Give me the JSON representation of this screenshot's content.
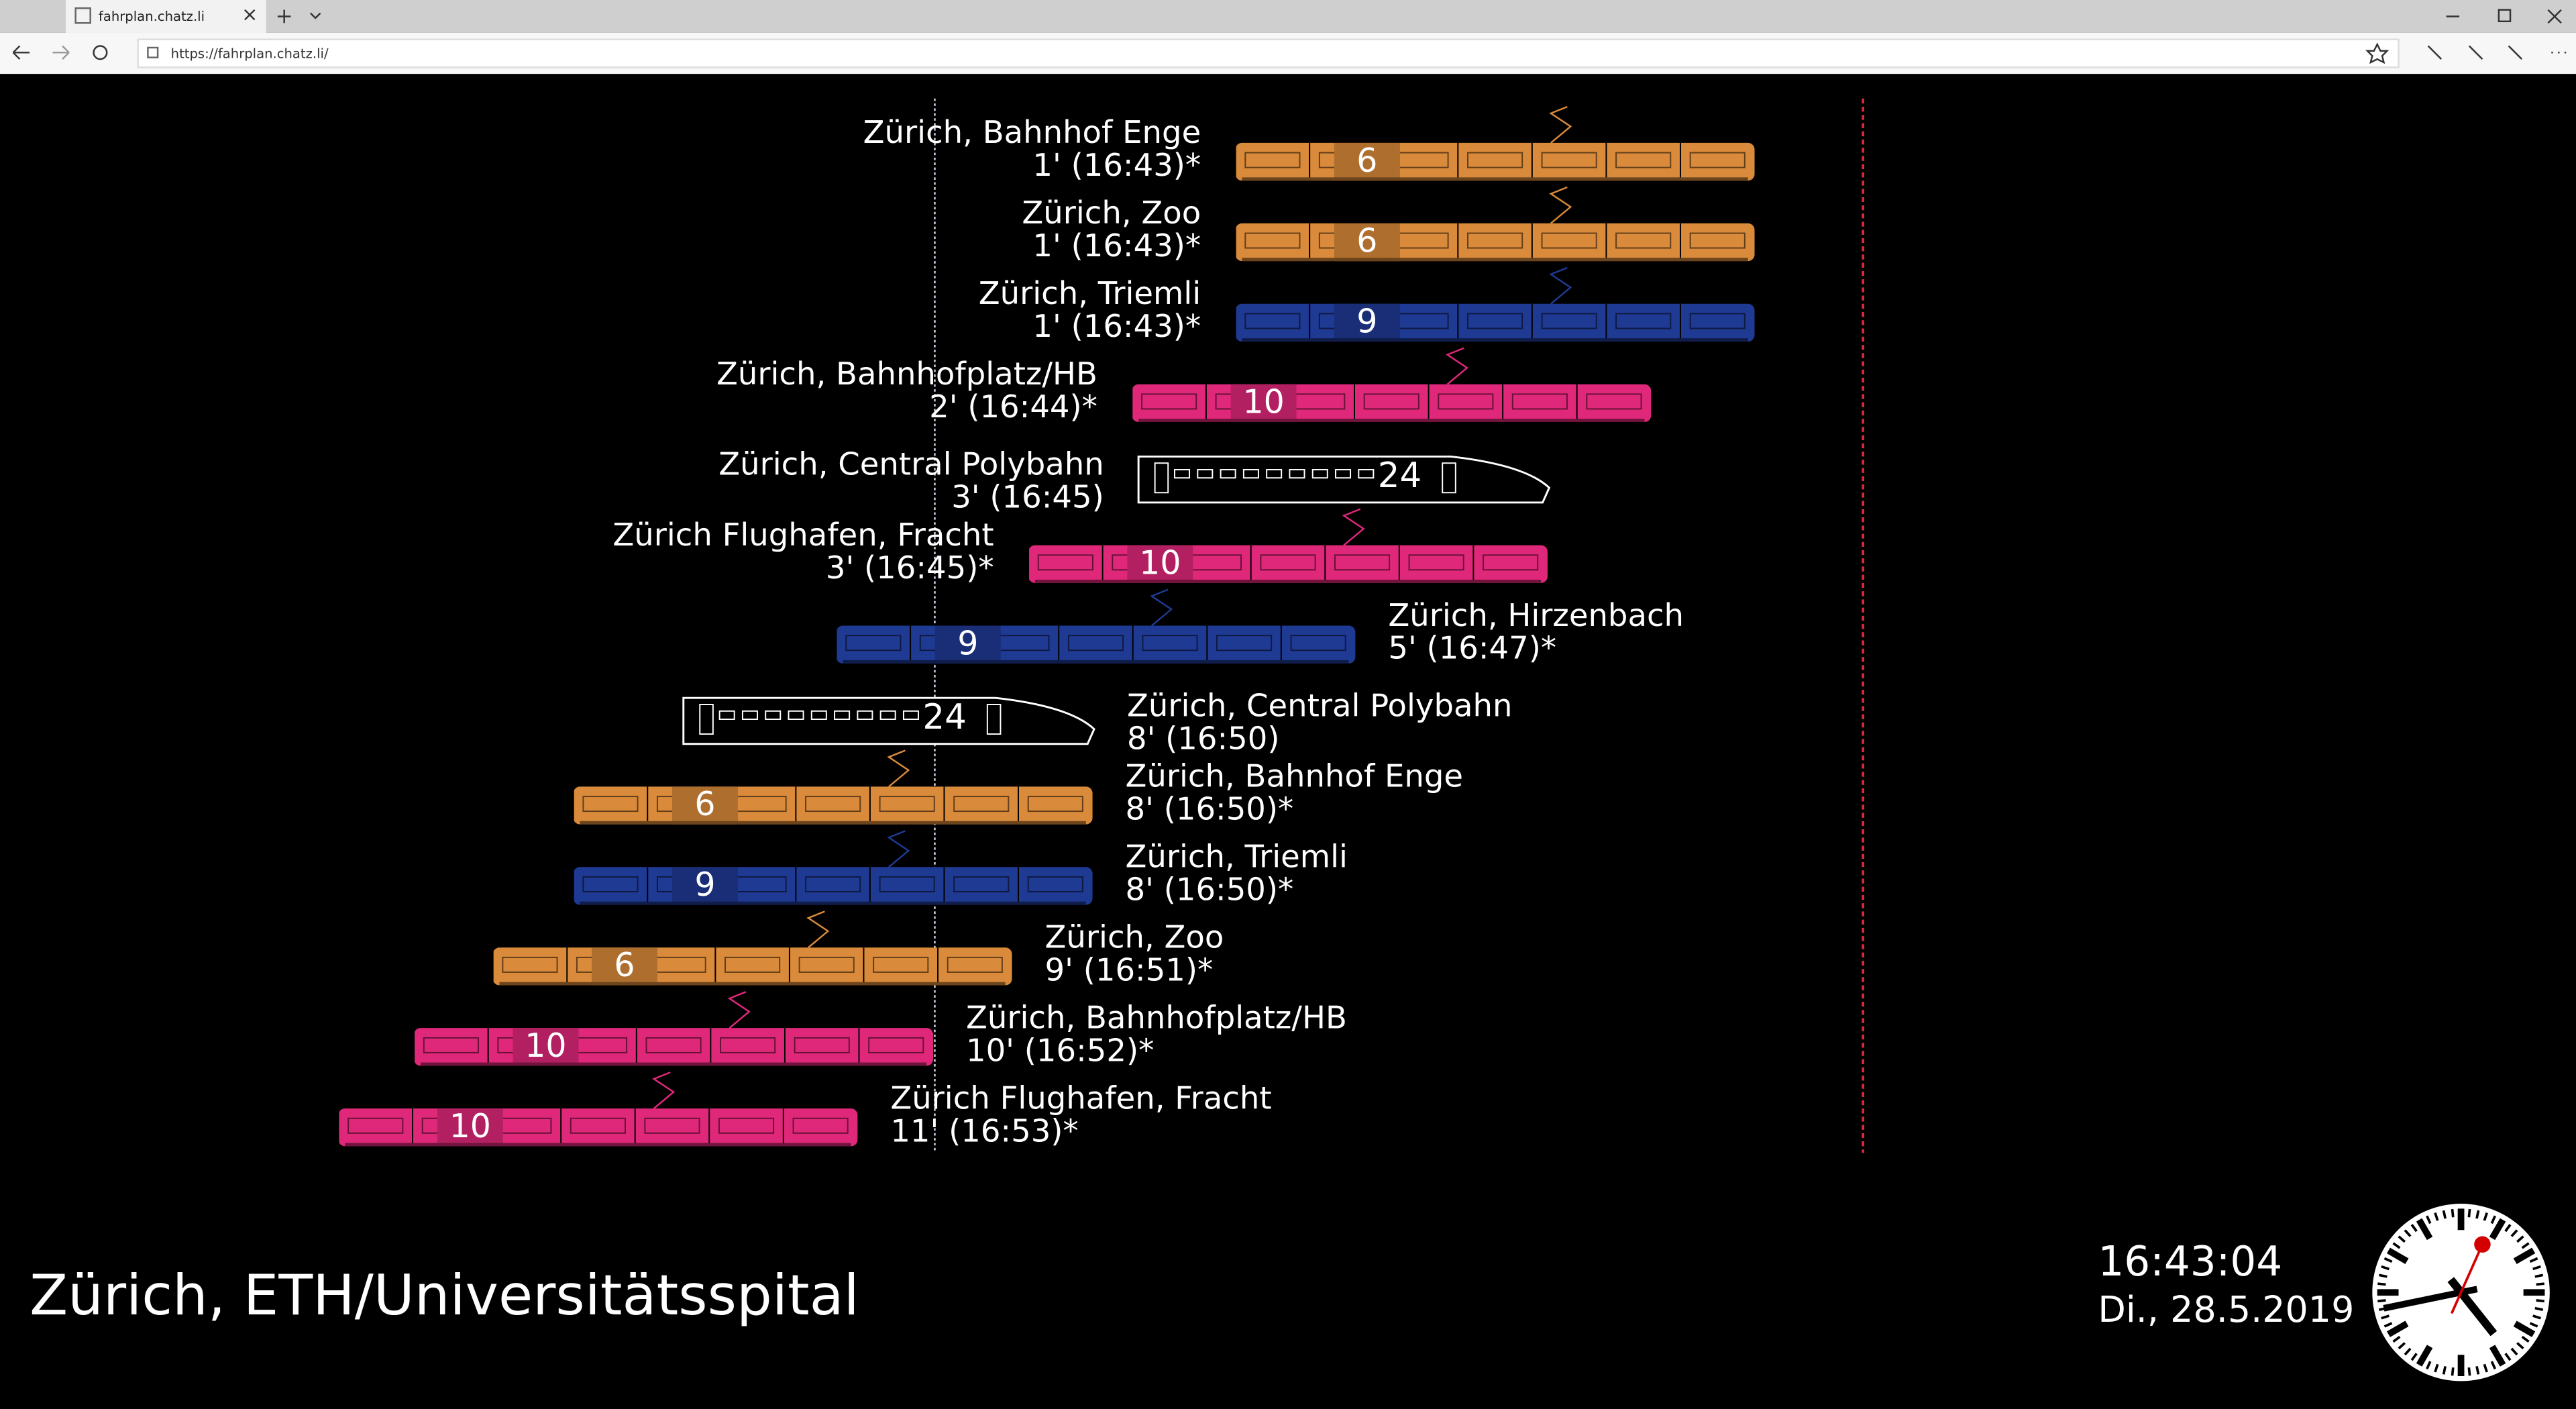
{
  "browser": {
    "tab_title": "fahrplan.chatz.li",
    "url": "https://fahrplan.chatz.li/"
  },
  "departures": [
    {
      "destination": "Zürich, Bahnhof Enge",
      "time": "1' (16:43)*",
      "line": 6,
      "color": "#d98a3a"
    },
    {
      "destination": "Zürich, Zoo",
      "time": "1' (16:43)*",
      "line": 6,
      "color": "#d98a3a"
    },
    {
      "destination": "Zürich, Triemli",
      "time": "1' (16:43)*",
      "line": 9,
      "color": "#1f3a93"
    },
    {
      "destination": "Zürich, Bahnhofplatz/HB",
      "time": "2' (16:44)*",
      "line": 10,
      "color": "#e0287a"
    },
    {
      "destination": "Zürich, Central Polybahn",
      "time": "3' (16:45)",
      "line": 24,
      "color": "#ffffff"
    },
    {
      "destination": "Zürich Flughafen, Fracht",
      "time": "3' (16:45)*",
      "line": 10,
      "color": "#e0287a"
    },
    {
      "destination": "Zürich, Hirzenbach",
      "time": "5' (16:47)*",
      "line": 9,
      "color": "#1f3a93"
    },
    {
      "destination": "Zürich, Central Polybahn",
      "time": "8' (16:50)",
      "line": 24,
      "color": "#ffffff"
    },
    {
      "destination": "Zürich, Bahnhof Enge",
      "time": "8' (16:50)*",
      "line": 6,
      "color": "#d98a3a"
    },
    {
      "destination": "Zürich, Triemli",
      "time": "8' (16:50)*",
      "line": 9,
      "color": "#1f3a93"
    },
    {
      "destination": "Zürich, Zoo",
      "time": "9' (16:51)*",
      "line": 6,
      "color": "#d98a3a"
    },
    {
      "destination": "Zürich, Bahnhofplatz/HB",
      "time": "10' (16:52)*",
      "line": 10,
      "color": "#e0287a"
    },
    {
      "destination": "Zürich Flughafen, Fracht",
      "time": "11' (16:53)*",
      "line": 10,
      "color": "#e0287a"
    }
  ],
  "station": "Zürich, ETH/Universitätsspital",
  "clock": {
    "time": "16:43:04",
    "date": "Di., 28.5.2019"
  }
}
